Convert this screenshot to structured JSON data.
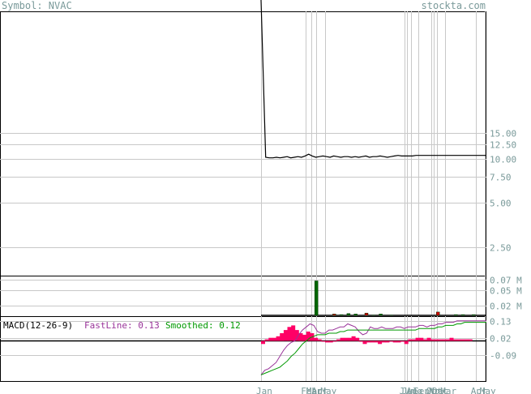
{
  "header": {
    "symbol_label": "Symbol: NVAC",
    "site": "stockta.com"
  },
  "macd": {
    "name": "MACD(12-26-9)",
    "fast_label": "FastLine: 0.13",
    "smoothed_label": "Smoothed: 0.12"
  },
  "colors": {
    "price_line": "#000000",
    "volume_up": "#006600",
    "volume_down": "#cc0000",
    "fast_line": "#993399",
    "smoothed_line": "#009900",
    "histogram": "#ff0066",
    "grid": "#c8c8c8",
    "axis_text": "#7a9a9a"
  },
  "chart_data": [
    {
      "type": "line",
      "panel": "price",
      "yscale": "log",
      "y_ticks": [
        "15.00",
        "12.50",
        "10.00",
        "7.50",
        "5.00",
        "2.50"
      ],
      "y_tick_values": [
        15,
        12.5,
        10,
        7.5,
        5,
        2.5
      ],
      "x": [
        0,
        1,
        2,
        3,
        4,
        5,
        6,
        7,
        8,
        9,
        10,
        11,
        12,
        13,
        14,
        15,
        16,
        17,
        18,
        19,
        20,
        21,
        22,
        23,
        24,
        25,
        26,
        27,
        28,
        29,
        30,
        31,
        32,
        33,
        34,
        35,
        36,
        37,
        38,
        39,
        40,
        41,
        42,
        43,
        44,
        45,
        46,
        47,
        48,
        49,
        50,
        51,
        52,
        53,
        54,
        55
      ],
      "values": [
        90,
        10.2,
        10.1,
        10.1,
        10.2,
        10.1,
        10.2,
        10.3,
        10.1,
        10.2,
        10.3,
        10.2,
        10.4,
        10.7,
        10.4,
        10.2,
        10.3,
        10.4,
        10.3,
        10.2,
        10.4,
        10.3,
        10.2,
        10.3,
        10.3,
        10.2,
        10.3,
        10.2,
        10.3,
        10.4,
        10.2,
        10.3,
        10.3,
        10.4,
        10.3,
        10.2,
        10.3,
        10.4,
        10.5,
        10.4,
        10.4,
        10.4,
        10.4,
        10.5,
        10.5,
        10.5,
        10.5,
        10.5,
        10.5,
        10.5,
        10.5,
        10.5,
        10.5,
        10.5,
        10.5,
        10.5
      ]
    },
    {
      "type": "bar",
      "panel": "volume",
      "y_ticks": [
        "0.07 M",
        "0.05 M",
        "0.02 M"
      ],
      "y_tick_values": [
        0.07,
        0.05,
        0.02
      ],
      "bars": [
        {
          "x": 15,
          "value": 0.068,
          "dir": "up"
        },
        {
          "x": 20,
          "value": 0.004,
          "dir": "down"
        },
        {
          "x": 22,
          "value": 0.003,
          "dir": "up"
        },
        {
          "x": 24,
          "value": 0.005,
          "dir": "up"
        },
        {
          "x": 26,
          "value": 0.004,
          "dir": "up"
        },
        {
          "x": 29,
          "value": 0.006,
          "dir": "down"
        },
        {
          "x": 31,
          "value": 0.002,
          "dir": "up"
        },
        {
          "x": 33,
          "value": 0.004,
          "dir": "up"
        },
        {
          "x": 36,
          "value": 0.002,
          "dir": "up"
        },
        {
          "x": 49,
          "value": 0.008,
          "dir": "down"
        },
        {
          "x": 54,
          "value": 0.003,
          "dir": "up"
        },
        {
          "x": 56,
          "value": 0.003,
          "dir": "up"
        },
        {
          "x": 59,
          "value": 0.003,
          "dir": "up"
        }
      ]
    },
    {
      "type": "line",
      "panel": "macd",
      "y_ticks": [
        "0.13",
        "0.02",
        "-0.09"
      ],
      "y_tick_values": [
        0.13,
        0.02,
        -0.09
      ],
      "fast": [
        -0.22,
        -0.19,
        -0.18,
        -0.16,
        -0.14,
        -0.1,
        -0.06,
        -0.03,
        -0.01,
        0.0,
        0.04,
        0.07,
        0.09,
        0.11,
        0.1,
        0.06,
        0.05,
        0.05,
        0.07,
        0.07,
        0.08,
        0.09,
        0.09,
        0.11,
        0.1,
        0.09,
        0.06,
        0.04,
        0.05,
        0.09,
        0.08,
        0.08,
        0.09,
        0.08,
        0.08,
        0.08,
        0.09,
        0.09,
        0.08,
        0.09,
        0.09,
        0.09,
        0.1,
        0.1,
        0.09,
        0.1,
        0.1,
        0.11,
        0.11,
        0.12,
        0.12,
        0.12,
        0.13,
        0.13,
        0.13,
        0.13
      ],
      "smoothed": [
        -0.22,
        -0.21,
        -0.2,
        -0.19,
        -0.18,
        -0.17,
        -0.15,
        -0.13,
        -0.1,
        -0.08,
        -0.05,
        -0.02,
        0.0,
        0.02,
        0.03,
        0.04,
        0.04,
        0.04,
        0.05,
        0.05,
        0.05,
        0.06,
        0.06,
        0.07,
        0.07,
        0.07,
        0.07,
        0.07,
        0.07,
        0.07,
        0.07,
        0.07,
        0.07,
        0.07,
        0.07,
        0.07,
        0.07,
        0.07,
        0.07,
        0.07,
        0.07,
        0.07,
        0.08,
        0.08,
        0.08,
        0.08,
        0.08,
        0.09,
        0.09,
        0.1,
        0.1,
        0.1,
        0.11,
        0.11,
        0.12,
        0.12
      ],
      "histogram": [
        -0.02,
        0.01,
        0.02,
        0.02,
        0.03,
        0.05,
        0.07,
        0.09,
        0.1,
        0.07,
        0.05,
        0.04,
        0.06,
        0.05,
        0.02,
        0.01,
        0.0,
        -0.01,
        -0.01,
        0.0,
        0.01,
        0.02,
        0.02,
        0.02,
        0.03,
        0.02,
        0.0,
        -0.02,
        -0.01,
        -0.01,
        -0.01,
        -0.02,
        -0.01,
        -0.01,
        0.0,
        -0.01,
        -0.01,
        0.0,
        -0.02,
        0.01,
        0.01,
        0.02,
        0.02,
        0.01,
        0.02,
        0.01,
        0.01,
        0.01,
        0.01,
        0.01,
        0.02,
        0.01,
        0.01,
        0.01,
        0.01,
        0.01
      ]
    },
    {
      "type": "table",
      "panel": "x-axis",
      "labels": [
        "Jan",
        "Feb",
        "Mar",
        "Apr",
        "May",
        "Jun",
        "Jul",
        "Aug",
        "Sept",
        "Oct",
        "Nov",
        "Dec",
        "Mar",
        "Apr",
        "May"
      ],
      "label_positions": [
        0,
        12.5,
        14,
        15.5,
        18,
        40,
        40.8,
        42,
        44,
        47.5,
        48.3,
        49.2,
        51.5,
        60,
        62.5
      ]
    }
  ]
}
